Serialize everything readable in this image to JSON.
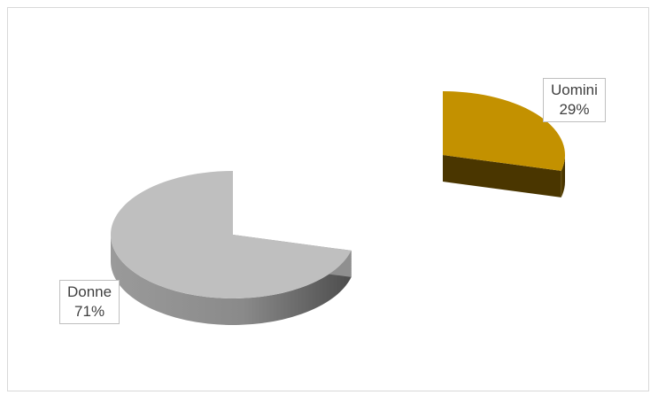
{
  "chart_data": {
    "type": "pie",
    "style": "3d-exploded",
    "slices": [
      {
        "name": "Uomini",
        "percent_label": "29%",
        "value": 29,
        "color": "#c39100"
      },
      {
        "name": "Donne",
        "percent_label": "71%",
        "value": 71,
        "color": "#bfbfbf"
      }
    ],
    "legend": "none",
    "data_labels": "callout"
  }
}
